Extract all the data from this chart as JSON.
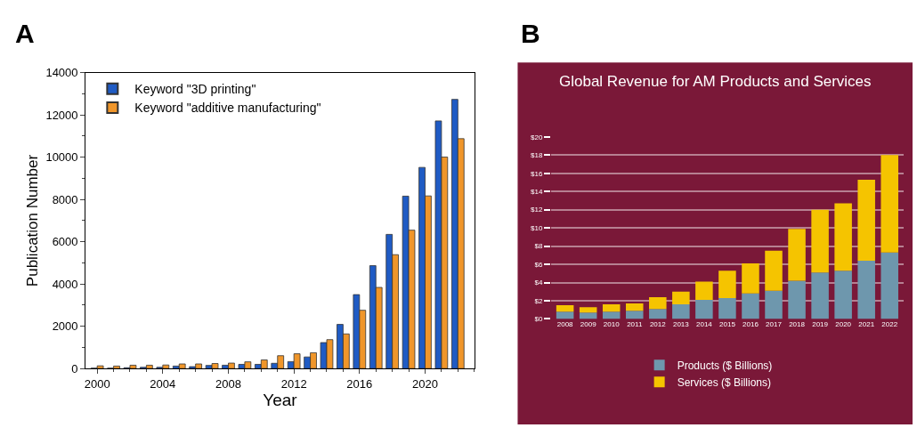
{
  "chart_data": [
    {
      "type": "bar",
      "xlabel": "Year",
      "ylabel": "Publication Number",
      "annotations": [
        "A"
      ],
      "x": [
        2000,
        2001,
        2002,
        2003,
        2004,
        2005,
        2006,
        2007,
        2008,
        2009,
        2010,
        2011,
        2012,
        2013,
        2014,
        2015,
        2016,
        2017,
        2018,
        2019,
        2020,
        2021,
        2022
      ],
      "series": [
        {
          "name": "Keyword \"3D printing\"",
          "color": "#1f5bc4",
          "values": [
            20,
            20,
            40,
            60,
            60,
            120,
            90,
            150,
            160,
            200,
            200,
            250,
            330,
            550,
            1230,
            2090,
            3500,
            4870,
            6350,
            8160,
            9520,
            11720,
            12740
          ]
        },
        {
          "name": "Keyword \"additive manufacturing\"",
          "color": "#f0962a",
          "values": [
            130,
            120,
            160,
            160,
            170,
            220,
            220,
            240,
            260,
            320,
            410,
            610,
            700,
            750,
            1370,
            1640,
            2760,
            3840,
            5390,
            6550,
            8170,
            10010,
            10880
          ]
        }
      ],
      "xlim": [
        1999.3,
        2023
      ],
      "xticks": [
        2000,
        2004,
        2008,
        2012,
        2016,
        2020
      ],
      "ylim": [
        0,
        14000
      ],
      "yticks": [
        0,
        2000,
        4000,
        6000,
        8000,
        10000,
        12000,
        14000
      ],
      "legend": "top left",
      "grid": false
    },
    {
      "type": "bar",
      "stacked": true,
      "title": "Global Revenue for AM Products and Services",
      "annotations": [
        "B"
      ],
      "categories": [
        "2008",
        "2009",
        "2010",
        "2011",
        "2012",
        "2013",
        "2014",
        "2015",
        "2016",
        "2017",
        "2018",
        "2019",
        "2020",
        "2021",
        "2022"
      ],
      "series": [
        {
          "name": "Products ($ Billions)",
          "color": "#6e97ad",
          "values": [
            0.8,
            0.7,
            0.8,
            0.9,
            1.1,
            1.6,
            2.1,
            2.3,
            2.8,
            3.1,
            4.2,
            5.1,
            5.3,
            6.4,
            7.3
          ]
        },
        {
          "name": "Services ($ Billions)",
          "color": "#f5c400",
          "values": [
            0.7,
            0.6,
            0.8,
            0.8,
            1.3,
            1.4,
            2.0,
            3.0,
            3.3,
            4.4,
            5.7,
            6.9,
            7.4,
            8.9,
            10.7
          ]
        }
      ],
      "ylim": [
        0,
        20
      ],
      "yticks": [
        {
          "value": 0,
          "label": "$0"
        },
        {
          "value": 2,
          "label": "$2"
        },
        {
          "value": 4,
          "label": "$4"
        },
        {
          "value": 6,
          "label": "$6"
        },
        {
          "value": 8,
          "label": "$8"
        },
        {
          "value": 10,
          "label": "$10"
        },
        {
          "value": 12,
          "label": "$12"
        },
        {
          "value": 14,
          "label": "$14"
        },
        {
          "value": 16,
          "label": "$16"
        },
        {
          "value": 18,
          "label": "$18"
        },
        {
          "value": 20,
          "label": "$20"
        }
      ],
      "legend": "bottom",
      "grid": "y"
    }
  ]
}
